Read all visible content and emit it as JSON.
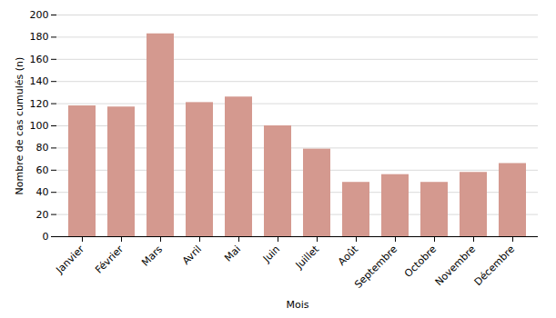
{
  "chart_data": {
    "type": "bar",
    "categories": [
      "Janvier",
      "Février",
      "Mars",
      "Avril",
      "Mai",
      "Juin",
      "Juillet",
      "Août",
      "Septembre",
      "Octobre",
      "Novembre",
      "Décembre"
    ],
    "values": [
      118,
      117,
      183,
      121,
      126,
      100,
      79,
      49,
      56,
      49,
      58,
      66
    ],
    "color": "#D4998F",
    "xlabel": "Mois",
    "ylabel": "Nombre de cas cumulés (n)",
    "ylim": [
      0,
      200
    ],
    "yticks": [
      0,
      20,
      40,
      60,
      80,
      100,
      120,
      140,
      160,
      180,
      200
    ],
    "grid": true
  }
}
